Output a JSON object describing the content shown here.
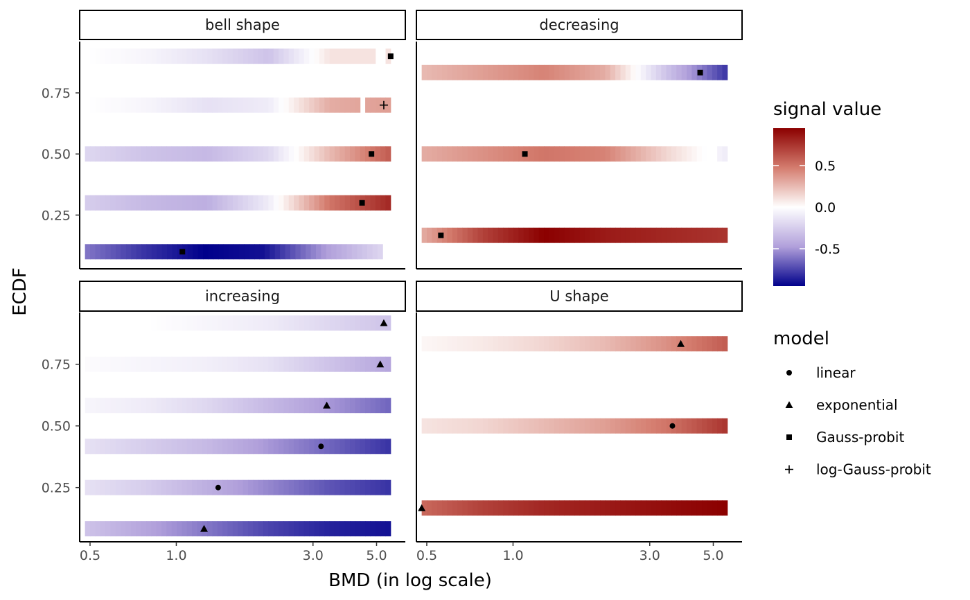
{
  "chart_data": {
    "type": "heatmap",
    "xlabel": "BMD (in log scale)",
    "ylabel": "ECDF",
    "x_scale": "log",
    "xlim": [
      0.46,
      6.3
    ],
    "x_ticks": [
      0.5,
      1.0,
      3.0,
      5.0
    ],
    "x_tick_labels": [
      "0.5",
      "1.0",
      "3.0",
      "5.0"
    ],
    "ylim": [
      0.03,
      0.96
    ],
    "y_ticks": [
      0.25,
      0.5,
      0.75
    ],
    "y_tick_labels": [
      "0.25",
      "0.50",
      "0.75"
    ],
    "grid": false,
    "legend_placement": "right",
    "color_legend": {
      "title": "signal value",
      "ticks": [
        0.5,
        0.0,
        -0.5
      ],
      "tick_labels": [
        "0.5",
        "0.0",
        "-0.5"
      ],
      "range": [
        -0.95,
        0.95
      ],
      "low_color": "#00008b",
      "mid_color": "#ffffff",
      "high_color": "#8b0000"
    },
    "shape_legend": {
      "title": "model",
      "entries": [
        {
          "label": "linear",
          "shape": "circle"
        },
        {
          "label": "exponential",
          "shape": "triangle"
        },
        {
          "label": "Gauss-probit",
          "shape": "square"
        },
        {
          "label": "log-Gauss-probit",
          "shape": "plus"
        }
      ]
    },
    "facets": [
      {
        "title": "bell shape",
        "rows": [
          {
            "ecdf": 0.9,
            "x_start": 0.48,
            "x_end": 5.6,
            "signal": [
              0,
              -0.05,
              -0.15,
              -0.3,
              0.1,
              0.1
            ],
            "gap": [
              5.05,
              5.3
            ],
            "bmd": 5.6,
            "model": "square"
          },
          {
            "ecdf": 0.7,
            "x_start": 0.48,
            "x_end": 5.6,
            "signal": [
              0,
              -0.05,
              -0.15,
              -0.1,
              0.3,
              0.35
            ],
            "gap": [
              4.35,
              4.6
            ],
            "bmd": 5.3,
            "model": "plus"
          },
          {
            "ecdf": 0.5,
            "x_start": 0.48,
            "x_end": 5.6,
            "signal": [
              -0.2,
              -0.3,
              -0.35,
              -0.2,
              0.25,
              0.6
            ],
            "gap": null,
            "bmd": 4.8,
            "model": "square"
          },
          {
            "ecdf": 0.3,
            "x_start": 0.48,
            "x_end": 5.6,
            "signal": [
              -0.25,
              -0.35,
              -0.4,
              -0.1,
              0.5,
              0.8
            ],
            "gap": null,
            "bmd": 4.45,
            "model": "square"
          },
          {
            "ecdf": 0.1,
            "x_start": 0.48,
            "x_end": 5.25,
            "signal": [
              -0.6,
              -0.8,
              -0.95,
              -0.9,
              -0.5,
              -0.2
            ],
            "gap": null,
            "bmd": 1.05,
            "model": "square"
          }
        ]
      },
      {
        "title": "decreasing",
        "rows": [
          {
            "ecdf": 0.833,
            "x_start": 0.48,
            "x_end": 5.6,
            "signal": [
              0.25,
              0.35,
              0.45,
              0.3,
              -0.3,
              -0.8
            ],
            "gap": null,
            "bmd": 4.5,
            "model": "square"
          },
          {
            "ecdf": 0.5,
            "x_start": 0.48,
            "x_end": 5.6,
            "signal": [
              0.3,
              0.4,
              0.5,
              0.45,
              0.15,
              -0.1
            ],
            "gap": [
              4.75,
              5.2
            ],
            "bmd": 1.1,
            "model": "square"
          },
          {
            "ecdf": 0.167,
            "x_start": 0.48,
            "x_end": 5.6,
            "signal": [
              0.3,
              0.7,
              0.95,
              0.85,
              0.8,
              0.75
            ],
            "gap": null,
            "bmd": 0.56,
            "model": "square"
          }
        ]
      },
      {
        "title": "increasing",
        "rows": [
          {
            "ecdf": 0.917,
            "x_start": 0.48,
            "x_end": 5.6,
            "signal": [
              0,
              0,
              -0.05,
              -0.1,
              -0.2,
              -0.3
            ],
            "gap": null,
            "bmd": 5.3,
            "model": "triangle"
          },
          {
            "ecdf": 0.75,
            "x_start": 0.48,
            "x_end": 5.6,
            "signal": [
              -0.02,
              -0.05,
              -0.08,
              -0.15,
              -0.3,
              -0.45
            ],
            "gap": null,
            "bmd": 5.15,
            "model": "triangle"
          },
          {
            "ecdf": 0.583,
            "x_start": 0.48,
            "x_end": 5.6,
            "signal": [
              -0.05,
              -0.1,
              -0.2,
              -0.35,
              -0.5,
              -0.65
            ],
            "gap": null,
            "bmd": 3.35,
            "model": "triangle"
          },
          {
            "ecdf": 0.417,
            "x_start": 0.48,
            "x_end": 5.6,
            "signal": [
              -0.15,
              -0.25,
              -0.35,
              -0.5,
              -0.65,
              -0.8
            ],
            "gap": null,
            "bmd": 3.2,
            "model": "circle"
          },
          {
            "ecdf": 0.25,
            "x_start": 0.48,
            "x_end": 5.6,
            "signal": [
              -0.15,
              -0.25,
              -0.4,
              -0.55,
              -0.7,
              -0.8
            ],
            "gap": null,
            "bmd": 1.4,
            "model": "circle"
          },
          {
            "ecdf": 0.083,
            "x_start": 0.48,
            "x_end": 5.6,
            "signal": [
              -0.3,
              -0.45,
              -0.6,
              -0.75,
              -0.85,
              -0.9
            ],
            "gap": null,
            "bmd": 1.25,
            "model": "triangle"
          }
        ]
      },
      {
        "title": "U shape",
        "rows": [
          {
            "ecdf": 0.833,
            "x_start": 0.48,
            "x_end": 5.6,
            "signal": [
              0.03,
              0.08,
              0.15,
              0.25,
              0.4,
              0.6
            ],
            "gap": null,
            "bmd": 3.85,
            "model": "triangle"
          },
          {
            "ecdf": 0.5,
            "x_start": 0.48,
            "x_end": 5.6,
            "signal": [
              0.1,
              0.15,
              0.25,
              0.35,
              0.5,
              0.75
            ],
            "gap": null,
            "bmd": 3.6,
            "model": "circle"
          },
          {
            "ecdf": 0.167,
            "x_start": 0.48,
            "x_end": 5.6,
            "signal": [
              0.55,
              0.7,
              0.8,
              0.85,
              0.9,
              0.95
            ],
            "gap": null,
            "bmd": 0.48,
            "model": "triangle"
          }
        ]
      }
    ]
  }
}
